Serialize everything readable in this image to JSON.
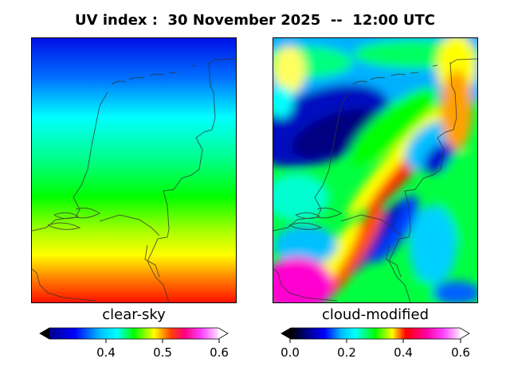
{
  "title": "UV index :  30 November 2025  --  12:00 UTC",
  "panels": [
    {
      "label": "clear-sky",
      "colorbar_ticks": [
        "0.4",
        "0.5",
        "0.6"
      ]
    },
    {
      "label": "cloud-modified",
      "colorbar_ticks": [
        "0.0",
        "0.2",
        "0.4",
        "0.6"
      ]
    }
  ],
  "colormap": [
    "#000000",
    "#00008b",
    "#0000ff",
    "#00bfff",
    "#00ffff",
    "#00ff80",
    "#00ff00",
    "#80ff00",
    "#ffff00",
    "#ff8000",
    "#ff0000",
    "#ff0090",
    "#ff00ff",
    "#ffb0ff",
    "#ffffff"
  ]
}
